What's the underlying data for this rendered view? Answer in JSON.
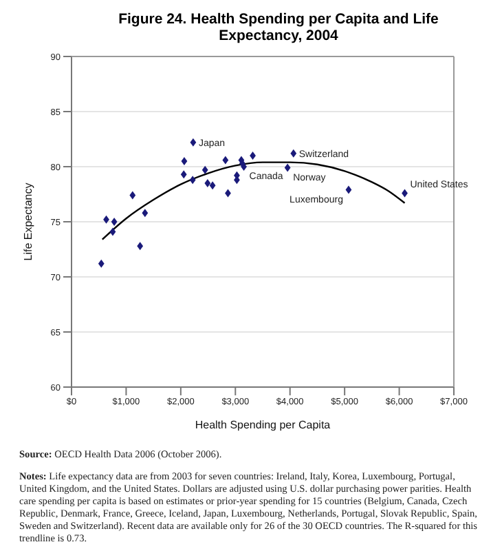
{
  "chart_data": {
    "type": "scatter",
    "title": "Figure 24.  Health Spending per Capita and Life Expectancy, 2004",
    "xlabel": "Health Spending per Capita",
    "ylabel": "Life Expectancy",
    "series": [
      {
        "marker": "diamond",
        "color": "#1a1a7a",
        "x": [
          545,
          636,
          782,
          755,
          1118,
          1255,
          1345,
          2064,
          2055,
          2227,
          2218,
          2445,
          2491,
          2582,
          2818,
          2864,
          3027,
          3027,
          3109,
          3127,
          3155,
          3318,
          3955,
          4064,
          5073,
          6100
        ],
        "values": [
          71.2,
          75.2,
          75.0,
          74.1,
          77.4,
          72.8,
          75.8,
          80.5,
          79.3,
          82.2,
          78.8,
          79.7,
          78.5,
          78.3,
          80.6,
          77.6,
          79.2,
          78.8,
          80.6,
          80.3,
          80.0,
          81.0,
          79.9,
          81.2,
          77.9,
          77.6
        ]
      },
      {
        "type": "line",
        "marker": "none",
        "color": "#000000",
        "x": [
          564,
          1000,
          1500,
          2000,
          2500,
          3000,
          3500,
          4000,
          4500,
          5000,
          5500,
          5800,
          6100
        ],
        "values": [
          73.4,
          75.3,
          77.0,
          78.4,
          79.4,
          80.1,
          80.4,
          80.4,
          80.2,
          79.6,
          78.6,
          77.8,
          76.7
        ]
      }
    ],
    "xlim": [
      0,
      7000
    ],
    "xticks": [
      {
        "value": 0,
        "label": "$0"
      },
      {
        "value": 1000,
        "label": "$1,000"
      },
      {
        "value": 2000,
        "label": "$2,000"
      },
      {
        "value": 3000,
        "label": "$3,000"
      },
      {
        "value": 4000,
        "label": "$4,000"
      },
      {
        "value": 5000,
        "label": "$5,000"
      },
      {
        "value": 6000,
        "label": "$6,000"
      },
      {
        "value": 7000,
        "label": "$7,000"
      }
    ],
    "ylim": [
      60,
      90
    ],
    "yticks": [
      60,
      65,
      70,
      75,
      80,
      85,
      90
    ],
    "grid": "y",
    "legend": false,
    "annotations": [
      {
        "text": "Japan",
        "x": 2227,
        "y": 82.2
      },
      {
        "text": "Switzerland",
        "x": 4064,
        "y": 81.2
      },
      {
        "text": "Canada",
        "x": 3155,
        "y": 80.0
      },
      {
        "text": "Norway",
        "x": 3955,
        "y": 79.9
      },
      {
        "text": "Luxembourg",
        "x": 5073,
        "y": 77.9
      },
      {
        "text": "United States",
        "x": 6100,
        "y": 77.6
      },
      "Source: OECD Health Data 2006 (October 2006).",
      "Notes: Life expectancy data are from 2003 for seven countries: Ireland, Italy, Korea, Luxembourg, Portugal, United Kingdom, and the United States.  Dollars are adjusted using U.S. dollar purchasing power parities.  Health care spending per capita is based on estimates or prior-year spending for 15 countries (Belgium, Canada, Czech Republic, Denmark, France, Greece, Iceland, Japan, Luxembourg, Netherlands, Portugal, Slovak Republic, Spain, Sweden and Switzerland).  Recent data are available only for 26 of the 30 OECD countries.  The R-squared for this trendline is 0.73."
    ]
  }
}
